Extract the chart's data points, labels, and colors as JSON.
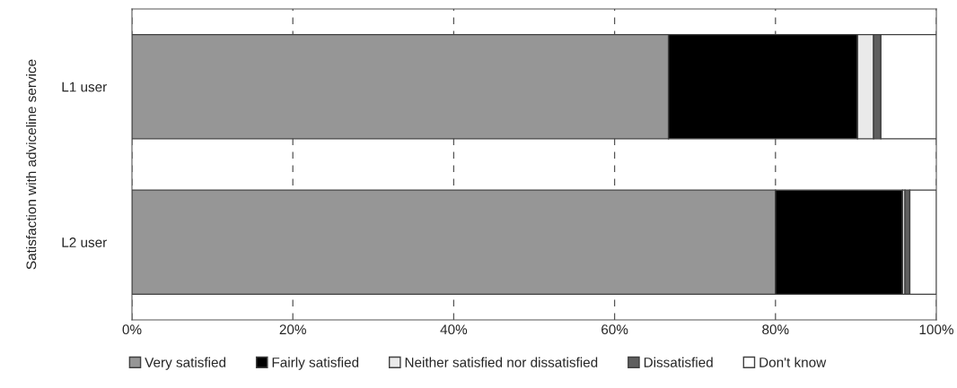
{
  "chart_data": {
    "type": "bar",
    "orientation": "horizontal",
    "stacked": true,
    "ylabel": "Satisfaction with adviceline service",
    "categories": [
      "L1 user",
      "L2 user"
    ],
    "series": [
      {
        "name": "Very satisfied",
        "color": "#969696",
        "values": [
          66.7,
          80.0
        ]
      },
      {
        "name": "Fairly satisfied",
        "color": "#000000",
        "values": [
          23.5,
          15.8
        ]
      },
      {
        "name": "Neither satisfied nor dissatisfied",
        "color": "#eaeaea",
        "values": [
          2.0,
          0.3
        ]
      },
      {
        "name": "Dissatisfied",
        "color": "#5f5f5f",
        "values": [
          0.9,
          0.6
        ]
      },
      {
        "name": "Don't know",
        "color": "#ffffff",
        "values": [
          6.9,
          3.3
        ]
      }
    ],
    "xlim": [
      0,
      100
    ],
    "xticks": [
      {
        "value": 0,
        "label": "0%"
      },
      {
        "value": 20,
        "label": "20%"
      },
      {
        "value": 40,
        "label": "40%"
      },
      {
        "value": 60,
        "label": "60%"
      },
      {
        "value": 80,
        "label": "80%"
      },
      {
        "value": 100,
        "label": "100%"
      }
    ],
    "grid": "x",
    "legend": "bottom"
  }
}
